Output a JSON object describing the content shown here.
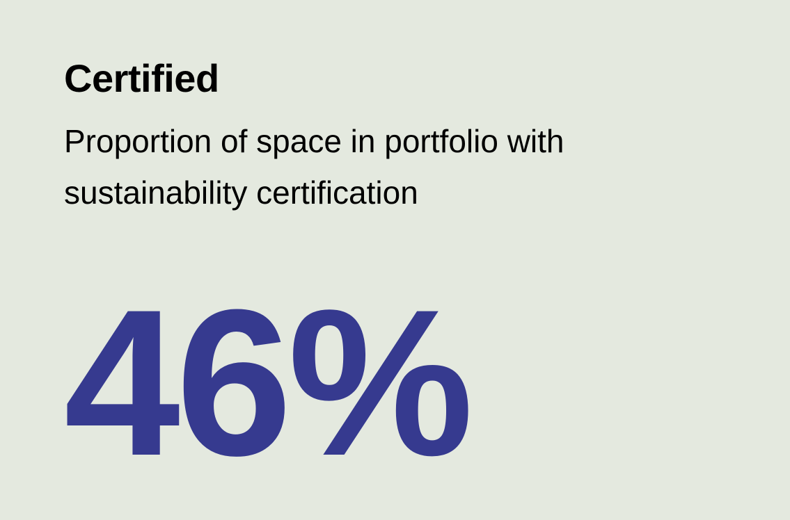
{
  "card": {
    "title": "Certified",
    "subtitle": "Proportion of space in portfolio with sustainability certification",
    "value": "46%",
    "value_color": "#363a8f",
    "background_color": "#e4e9df"
  }
}
